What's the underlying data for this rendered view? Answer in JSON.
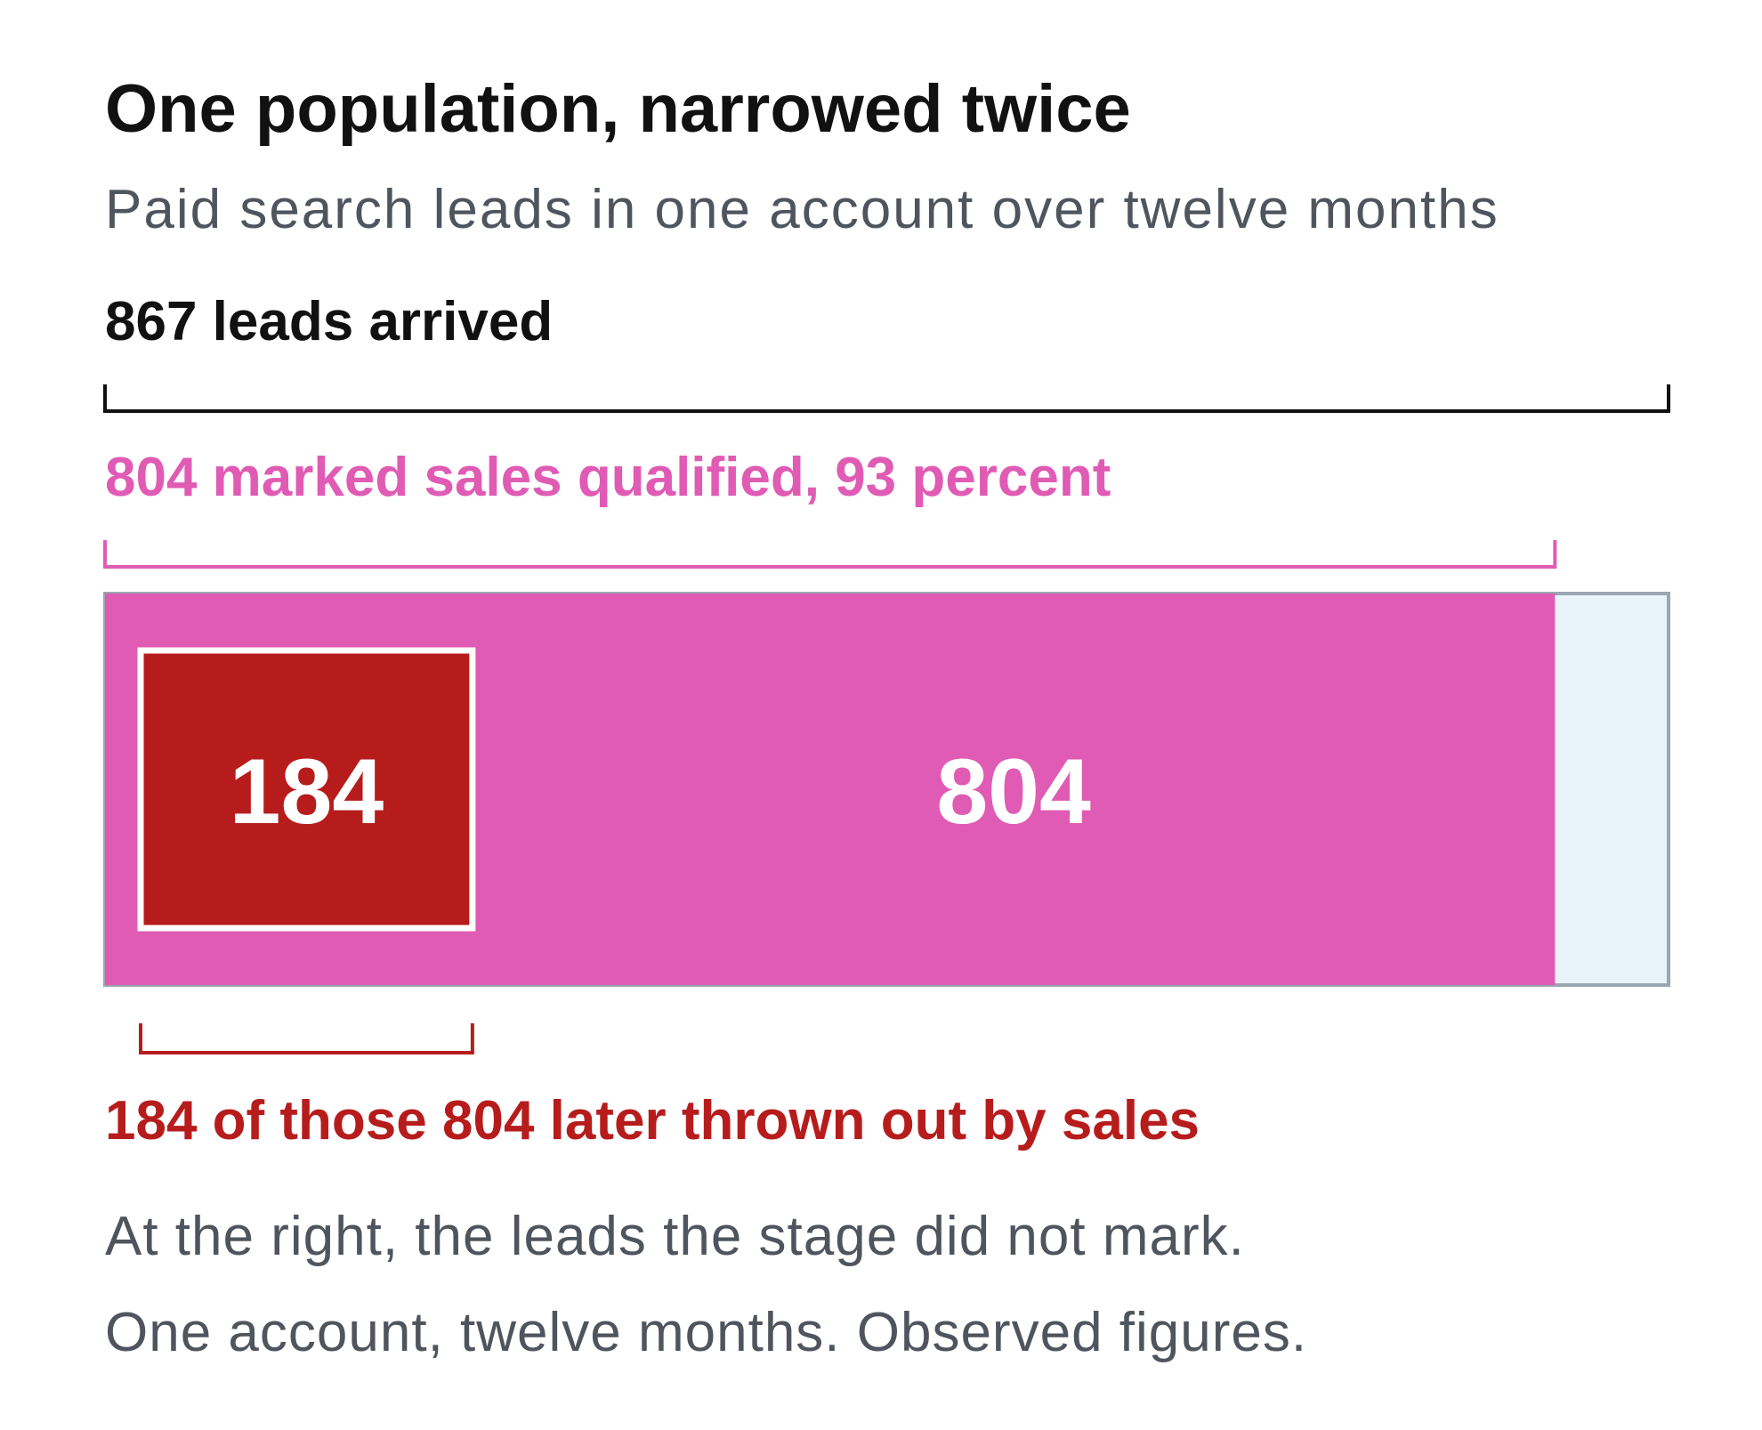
{
  "chart_data": {
    "type": "nested-bar",
    "title": "One population, narrowed twice",
    "subtitle": "Paid search leads in one account over twelve months",
    "total": {
      "label": "867 leads arrived",
      "value": 867,
      "color": "#111111",
      "remainder_color": "#e8f4fa"
    },
    "series": [
      {
        "name": "804 marked sales qualified, 93 percent",
        "value": 804,
        "color": "#e05bb4"
      },
      {
        "name": "184 of those 804 later thrown out by sales",
        "value": 184,
        "color": "#b71c1c"
      }
    ],
    "notes": [
      "At the right, the leads the stage did not mark.",
      "One account, twelve months. Observed figures."
    ]
  }
}
